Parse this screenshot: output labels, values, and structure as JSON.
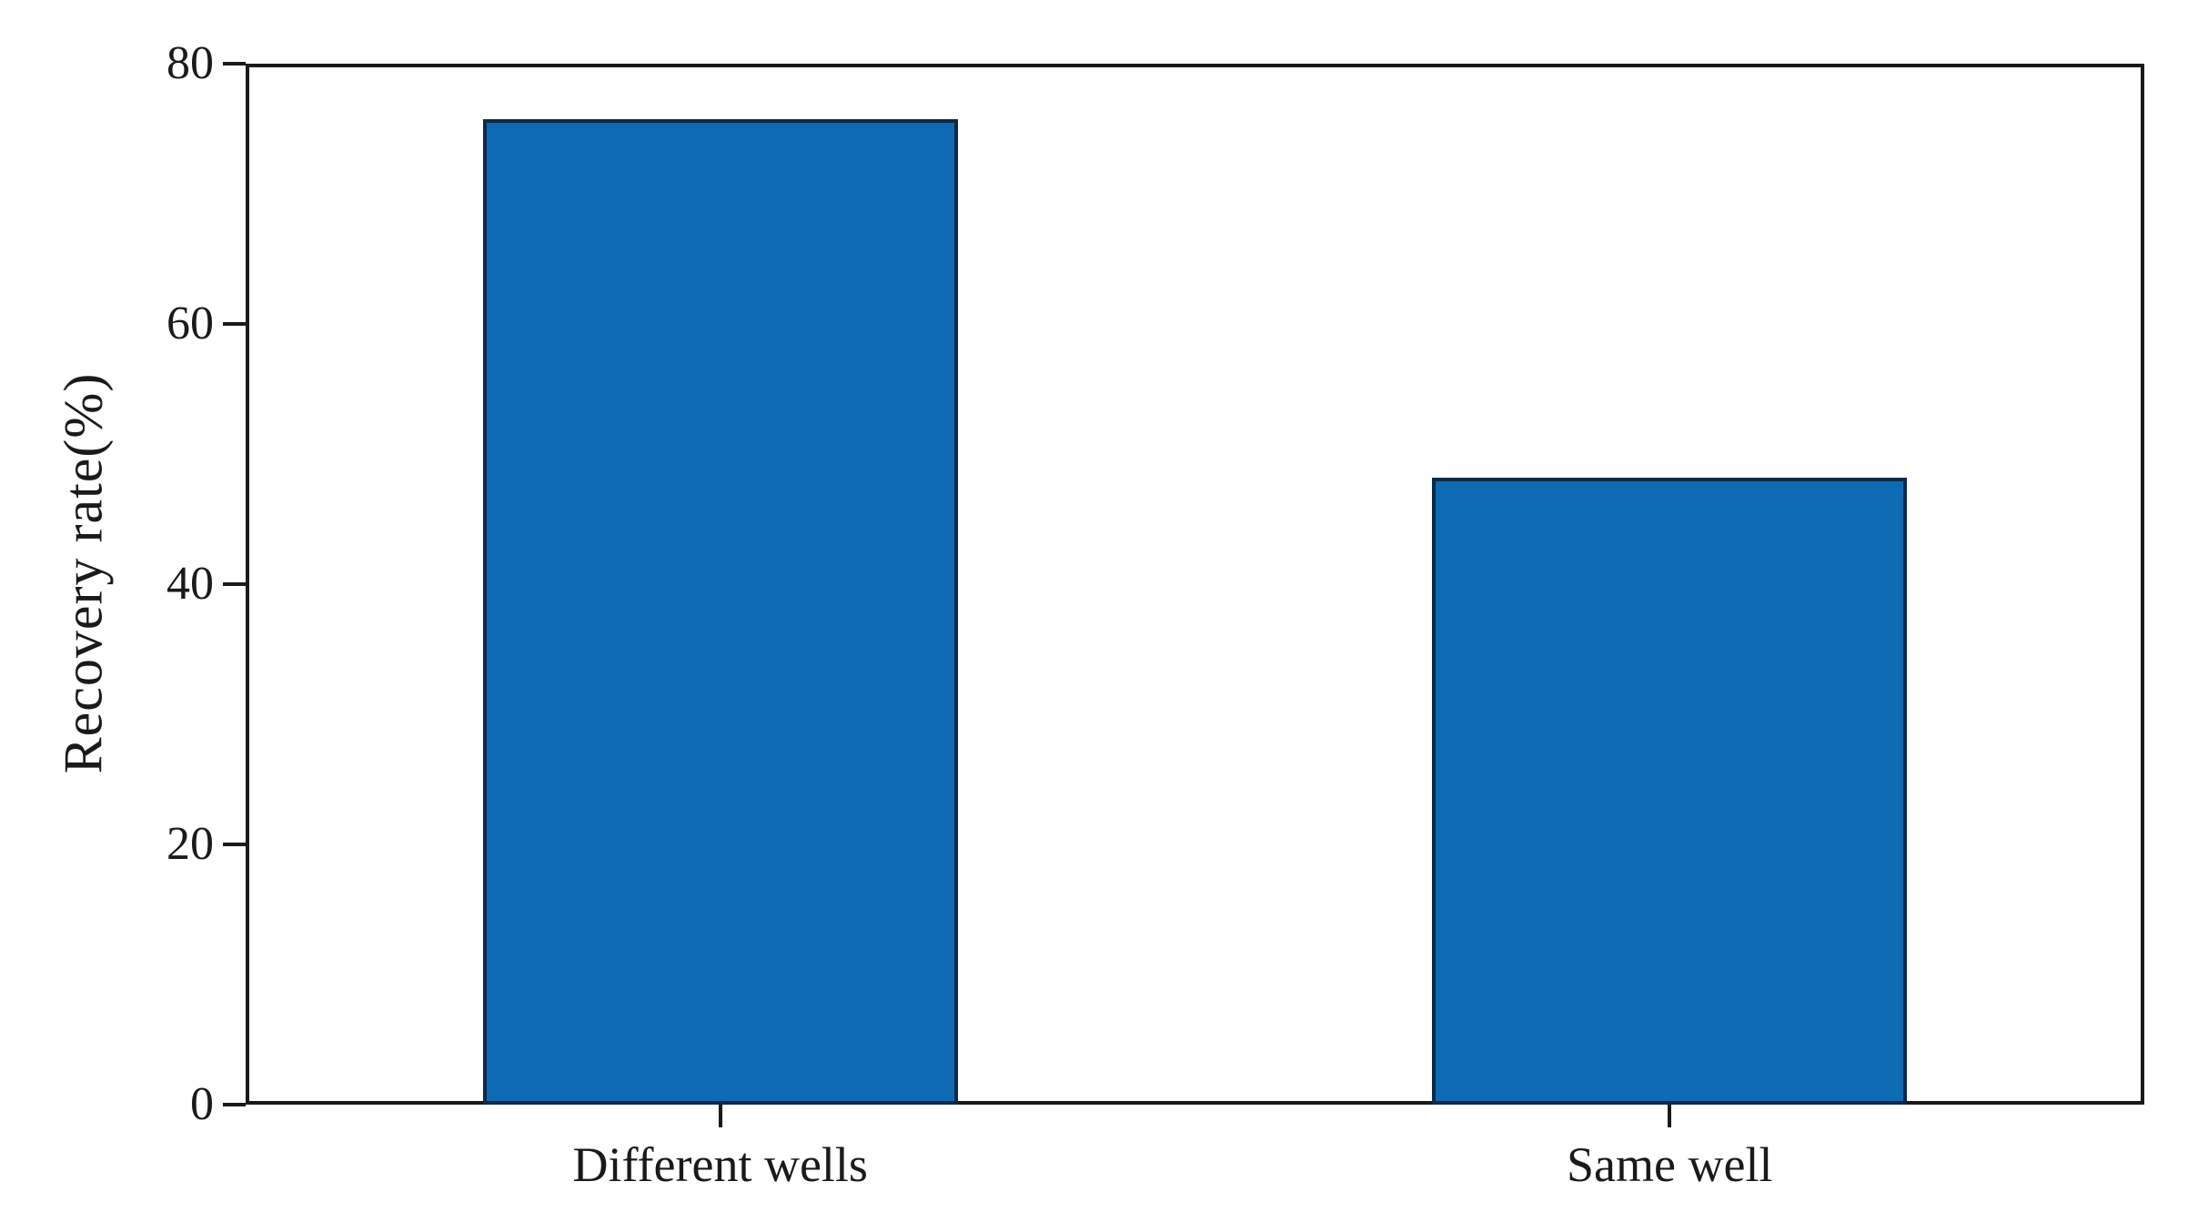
{
  "chart_data": {
    "type": "bar",
    "title": "",
    "xlabel": "",
    "ylabel": "Recovery rate(%)",
    "categories": [
      "Different wells",
      "Same well"
    ],
    "values": [
      75.7,
      48.2
    ],
    "ylim": [
      0,
      80
    ],
    "yticks": [
      0,
      20,
      40,
      60,
      80
    ],
    "grid": "off",
    "legend": "none",
    "bar_color": "#0d6ab3",
    "bar_edge_color": "#0c2a47",
    "axis_color": "#1a1a1a",
    "background_color": "#ffffff"
  }
}
